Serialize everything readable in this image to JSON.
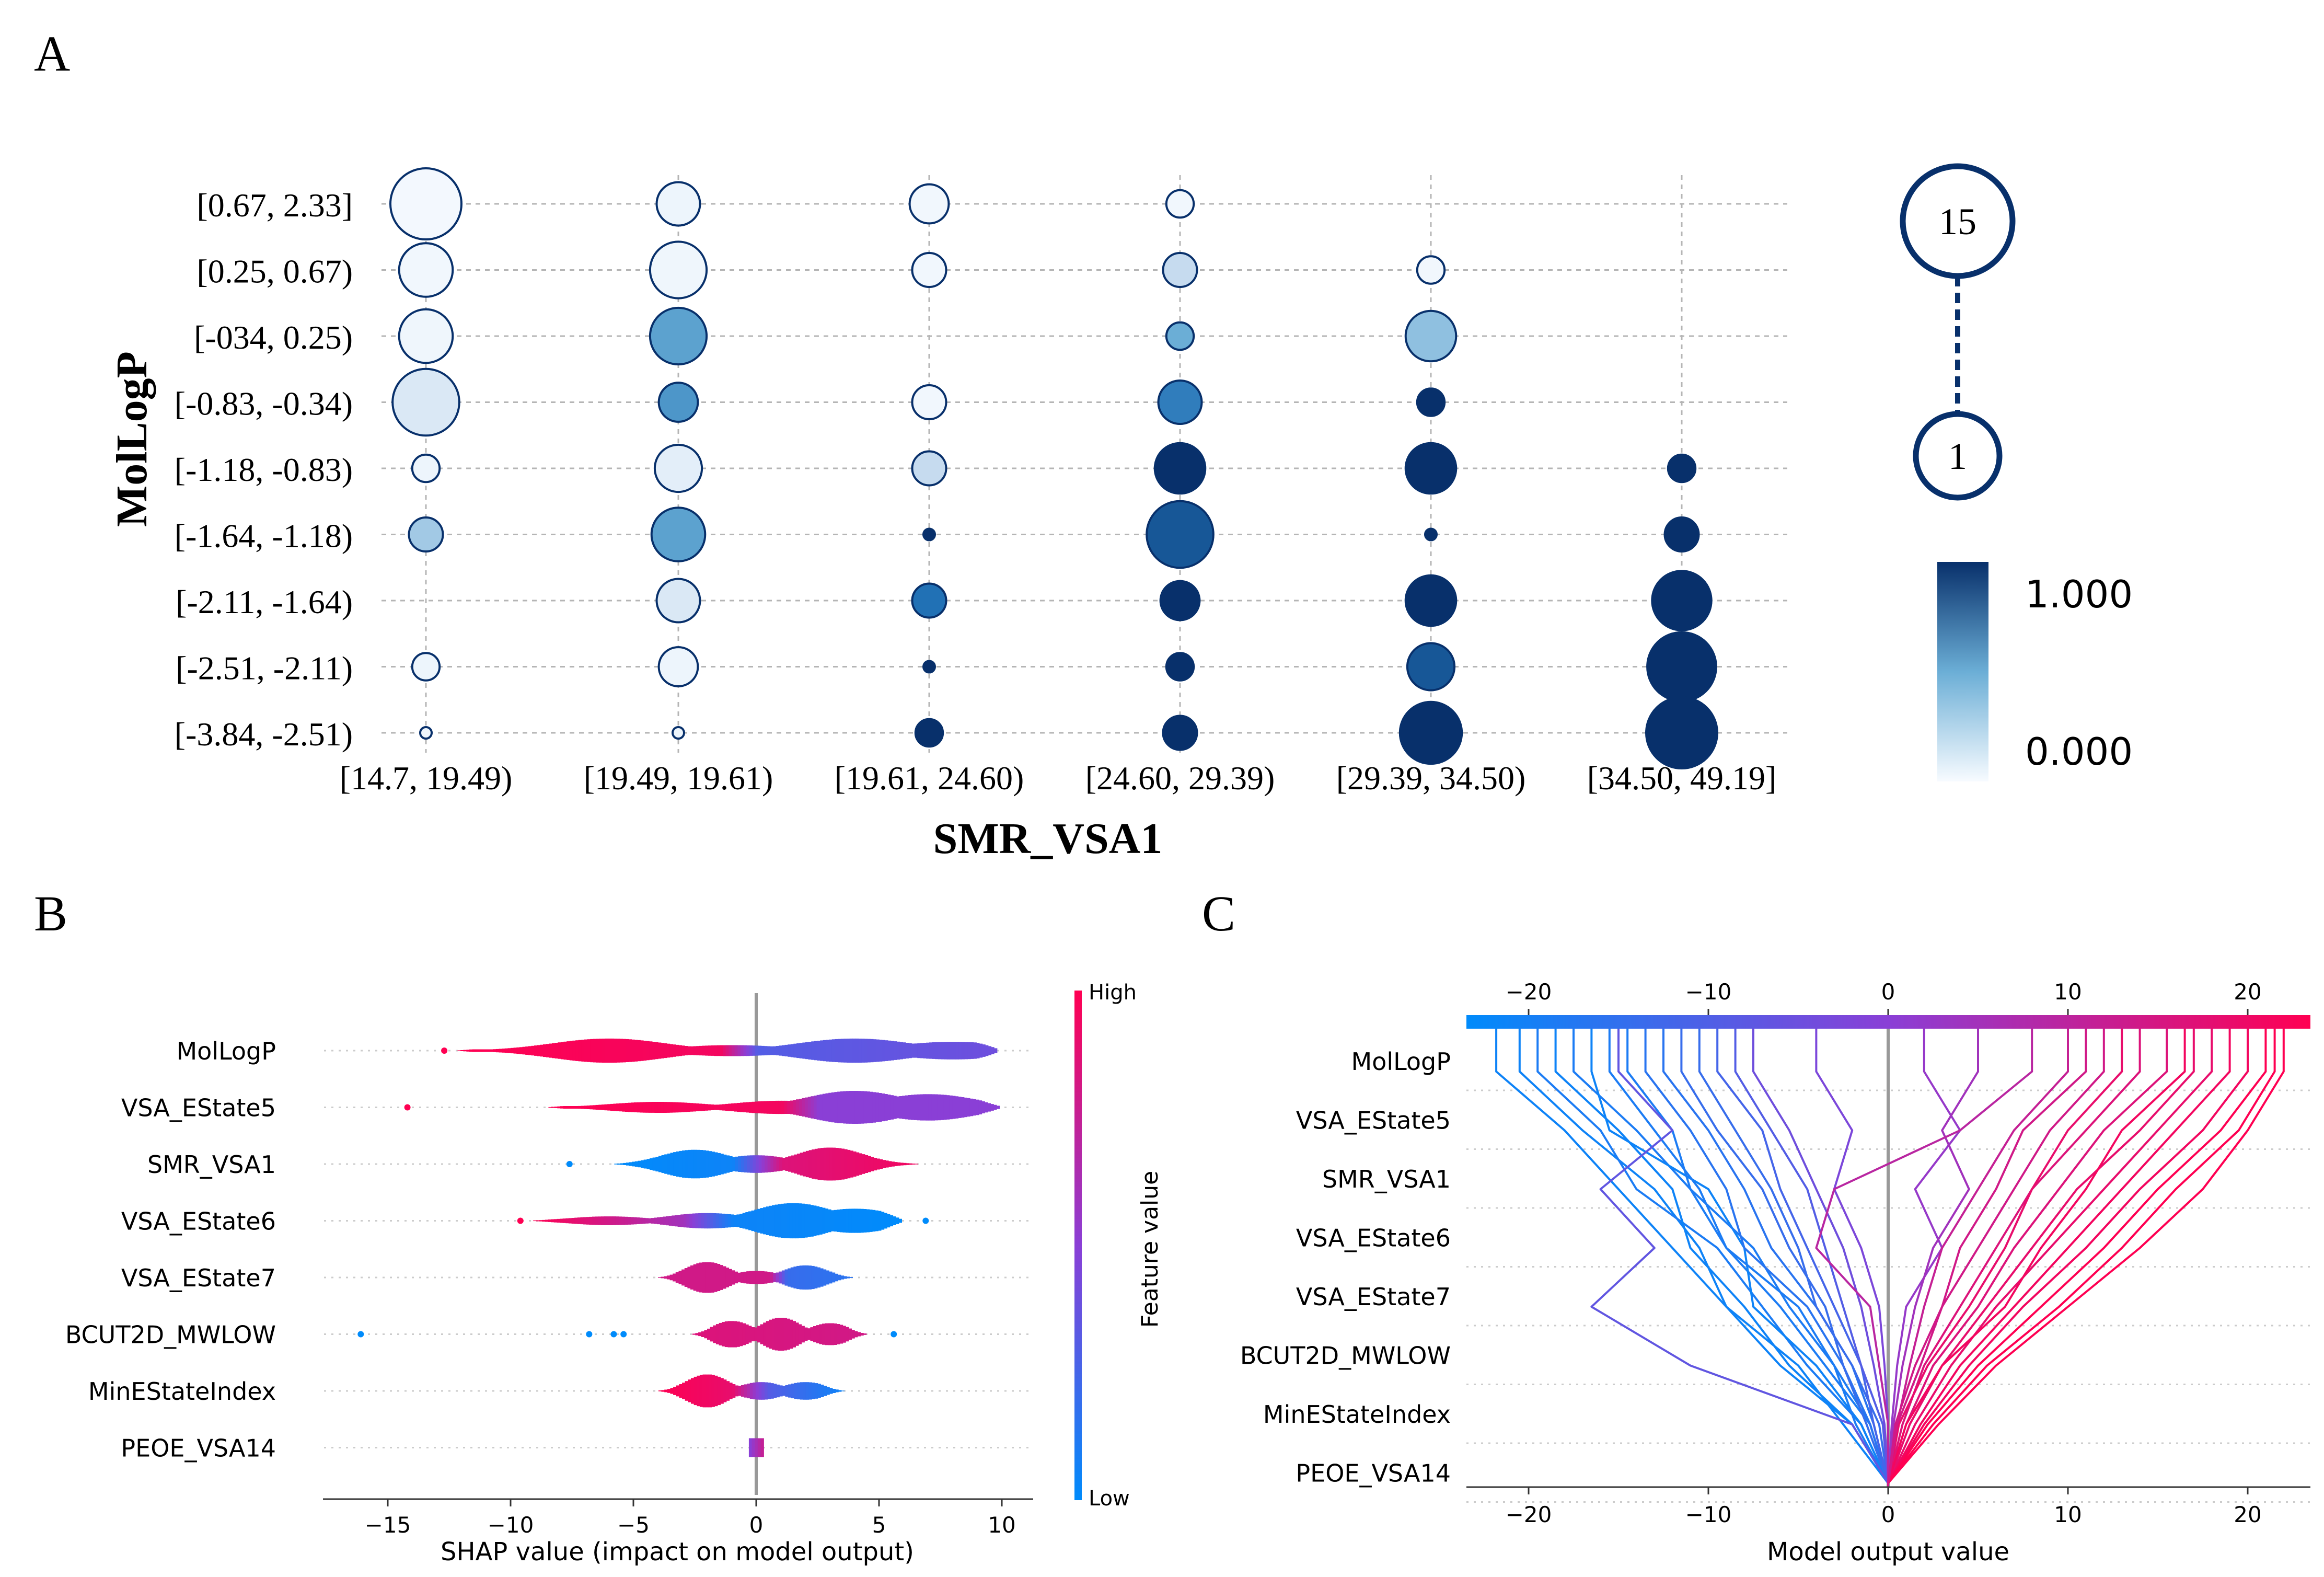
{
  "panel_labels": [
    "A",
    "B",
    "C"
  ],
  "chart_data": [
    {
      "type": "scatter",
      "panel": "A",
      "xlabel": "SMR_VSA1",
      "ylabel": "MolLogP",
      "x_categories": [
        "[14.7, 19.49)",
        "[19.49, 19.61)",
        "[19.61, 24.60)",
        "[24.60, 29.39)",
        "[29.39, 34.50)",
        "[34.50, 49.19]"
      ],
      "y_categories": [
        "[0.67, 2.33]",
        "[0.25, 0.67)",
        "[-034, 0.25)",
        "[-0.83, -0.34)",
        "[-1.18, -0.83)",
        "[-1.64, -1.18)",
        "[-2.11, -1.64)",
        "[-2.51, -2.11)",
        "[-3.84, -2.51)"
      ],
      "size_legend": {
        "max_label": "15",
        "min_label": "1",
        "max": 15,
        "min": 1
      },
      "color_legend": {
        "max_label": "1.000",
        "min_label": "0.000",
        "low_color": "#f7fbff",
        "high_color": "#08306b"
      },
      "points": [
        {
          "x": 0,
          "y": 0,
          "count": 15,
          "value": 0.02
        },
        {
          "x": 0,
          "y": 1,
          "count": 8,
          "value": 0.03
        },
        {
          "x": 0,
          "y": 2,
          "count": 8,
          "value": 0.04
        },
        {
          "x": 0,
          "y": 3,
          "count": 13,
          "value": 0.15
        },
        {
          "x": 0,
          "y": 4,
          "count": 2,
          "value": 0.05
        },
        {
          "x": 0,
          "y": 5,
          "count": 3,
          "value": 0.35
        },
        {
          "x": 0,
          "y": 7,
          "count": 2,
          "value": 0.05
        },
        {
          "x": 0,
          "y": 8,
          "count": 1,
          "value": 0.05
        },
        {
          "x": 1,
          "y": 0,
          "count": 5,
          "value": 0.05
        },
        {
          "x": 1,
          "y": 1,
          "count": 9,
          "value": 0.04
        },
        {
          "x": 1,
          "y": 2,
          "count": 9,
          "value": 0.55
        },
        {
          "x": 1,
          "y": 3,
          "count": 4,
          "value": 0.6
        },
        {
          "x": 1,
          "y": 4,
          "count": 6,
          "value": 0.1
        },
        {
          "x": 1,
          "y": 5,
          "count": 8,
          "value": 0.55
        },
        {
          "x": 1,
          "y": 6,
          "count": 5,
          "value": 0.15
        },
        {
          "x": 1,
          "y": 7,
          "count": 4,
          "value": 0.05
        },
        {
          "x": 1,
          "y": 8,
          "count": 1,
          "value": 0.05
        },
        {
          "x": 2,
          "y": 0,
          "count": 4,
          "value": 0.03
        },
        {
          "x": 2,
          "y": 1,
          "count": 3,
          "value": 0.03
        },
        {
          "x": 2,
          "y": 3,
          "count": 3,
          "value": 0.03
        },
        {
          "x": 2,
          "y": 4,
          "count": 3,
          "value": 0.25
        },
        {
          "x": 2,
          "y": 5,
          "count": 1,
          "value": 1.0
        },
        {
          "x": 2,
          "y": 6,
          "count": 3,
          "value": 0.75
        },
        {
          "x": 2,
          "y": 7,
          "count": 1,
          "value": 1.0
        },
        {
          "x": 2,
          "y": 8,
          "count": 2,
          "value": 1.0
        },
        {
          "x": 3,
          "y": 0,
          "count": 2,
          "value": 0.03
        },
        {
          "x": 3,
          "y": 1,
          "count": 3,
          "value": 0.25
        },
        {
          "x": 3,
          "y": 2,
          "count": 2,
          "value": 0.5
        },
        {
          "x": 3,
          "y": 3,
          "count": 5,
          "value": 0.7
        },
        {
          "x": 3,
          "y": 4,
          "count": 7,
          "value": 1.0
        },
        {
          "x": 3,
          "y": 5,
          "count": 13,
          "value": 0.85
        },
        {
          "x": 3,
          "y": 6,
          "count": 4,
          "value": 1.0
        },
        {
          "x": 3,
          "y": 7,
          "count": 2,
          "value": 1.0
        },
        {
          "x": 3,
          "y": 8,
          "count": 3,
          "value": 1.0
        },
        {
          "x": 4,
          "y": 1,
          "count": 2,
          "value": 0.03
        },
        {
          "x": 4,
          "y": 2,
          "count": 7,
          "value": 0.4
        },
        {
          "x": 4,
          "y": 3,
          "count": 2,
          "value": 1.0
        },
        {
          "x": 4,
          "y": 4,
          "count": 7,
          "value": 1.0
        },
        {
          "x": 4,
          "y": 5,
          "count": 1,
          "value": 1.0
        },
        {
          "x": 4,
          "y": 6,
          "count": 7,
          "value": 1.0
        },
        {
          "x": 4,
          "y": 7,
          "count": 6,
          "value": 0.85
        },
        {
          "x": 4,
          "y": 8,
          "count": 11,
          "value": 1.0
        },
        {
          "x": 5,
          "y": 4,
          "count": 2,
          "value": 1.0
        },
        {
          "x": 5,
          "y": 5,
          "count": 3,
          "value": 1.0
        },
        {
          "x": 5,
          "y": 6,
          "count": 10,
          "value": 1.0
        },
        {
          "x": 5,
          "y": 7,
          "count": 14,
          "value": 1.0
        },
        {
          "x": 5,
          "y": 8,
          "count": 15,
          "value": 1.0
        }
      ]
    },
    {
      "type": "violin",
      "panel": "B",
      "xlabel": "SHAP value (impact on model output)",
      "colorbar_label": "Feature value",
      "colorbar_high": "High",
      "colorbar_low": "Low",
      "low_color": "#008bfb",
      "high_color": "#ff0052",
      "xlim": [
        -17.5,
        10.5
      ],
      "xticks": [
        -15,
        -10,
        -5,
        0,
        5,
        10
      ],
      "xtick_labels": [
        "−15",
        "−10",
        "−5",
        "0",
        "5",
        "10"
      ],
      "features": [
        "MolLogP",
        "VSA_EState5",
        "SMR_VSA1",
        "VSA_EState6",
        "VSA_EState7",
        "BCUT2D_MWLOW",
        "MinEStateIndex",
        "PEOE_VSA14"
      ],
      "violins": [
        {
          "min": -12.4,
          "max": 9.8,
          "peaks": [
            [
              -6,
              0.55
            ],
            [
              -1,
              0.25
            ],
            [
              4,
              0.55
            ],
            [
              8,
              0.4
            ]
          ],
          "color_stops": [
            [
              -12.4,
              1.0
            ],
            [
              -1.5,
              0.95
            ],
            [
              0,
              0.3
            ],
            [
              9.8,
              0.4
            ]
          ]
        },
        {
          "min": -8.7,
          "max": 9.9,
          "peaks": [
            [
              -4,
              0.25
            ],
            [
              1,
              0.3
            ],
            [
              4,
              0.75
            ],
            [
              7,
              0.6
            ]
          ],
          "color_stops": [
            [
              -8.7,
              1.0
            ],
            [
              1,
              0.95
            ],
            [
              2.5,
              0.5
            ],
            [
              9.9,
              0.5
            ]
          ]
        },
        {
          "min": -5.9,
          "max": 6.8,
          "peaks": [
            [
              -2.5,
              0.65
            ],
            [
              0,
              0.4
            ],
            [
              3,
              0.75
            ]
          ],
          "color_stops": [
            [
              -5.9,
              0.0
            ],
            [
              -1,
              0.05
            ],
            [
              1,
              0.85
            ],
            [
              6.8,
              0.95
            ]
          ]
        },
        {
          "min": -9.2,
          "max": 5.9,
          "peaks": [
            [
              -6,
              0.2
            ],
            [
              -2,
              0.35
            ],
            [
              1.5,
              0.8
            ],
            [
              4,
              0.55
            ]
          ],
          "color_stops": [
            [
              -9.2,
              1.0
            ],
            [
              -3,
              0.6
            ],
            [
              -1,
              0.05
            ],
            [
              5.9,
              0.0
            ]
          ]
        },
        {
          "min": -4.0,
          "max": 4.0,
          "peaks": [
            [
              -2,
              0.7
            ],
            [
              0,
              0.3
            ],
            [
              2,
              0.55
            ]
          ],
          "color_stops": [
            [
              -4.0,
              0.8
            ],
            [
              0.5,
              0.8
            ],
            [
              1.2,
              0.2
            ],
            [
              4.0,
              0.15
            ]
          ]
        },
        {
          "min": -2.6,
          "max": 4.5,
          "peaks": [
            [
              -1,
              0.6
            ],
            [
              1,
              0.75
            ],
            [
              3,
              0.5
            ]
          ],
          "color_stops": [
            [
              -2.6,
              0.85
            ],
            [
              4.5,
              0.8
            ]
          ]
        },
        {
          "min": -4.1,
          "max": 3.5,
          "peaks": [
            [
              -2,
              0.75
            ],
            [
              0.2,
              0.4
            ],
            [
              2,
              0.4
            ]
          ],
          "color_stops": [
            [
              -4.1,
              1.0
            ],
            [
              -1,
              0.9
            ],
            [
              0.5,
              0.3
            ],
            [
              3.5,
              0.05
            ]
          ]
        },
        {
          "min": -0.3,
          "max": 0.3,
          "peaks": [
            [
              0,
              0.6
            ]
          ],
          "color_stops": [
            [
              -0.3,
              0.5
            ],
            [
              0.3,
              0.8
            ]
          ]
        }
      ],
      "outliers": [
        {
          "feature": 0,
          "x": -12.7,
          "value": 1.0
        },
        {
          "feature": 1,
          "x": -14.2,
          "value": 1.0
        },
        {
          "feature": 2,
          "x": -7.6,
          "value": 0.0
        },
        {
          "feature": 3,
          "x": -9.6,
          "value": 1.0
        },
        {
          "feature": 3,
          "x": 6.9,
          "value": 0.0
        },
        {
          "feature": 5,
          "x": -16.1,
          "value": 0.0
        },
        {
          "feature": 5,
          "x": -6.8,
          "value": 0.0
        },
        {
          "feature": 5,
          "x": -5.8,
          "value": 0.0
        },
        {
          "feature": 5,
          "x": -5.4,
          "value": 0.0
        },
        {
          "feature": 5,
          "x": 5.6,
          "value": 0.0
        }
      ]
    },
    {
      "type": "line",
      "panel": "C",
      "xlabel": "Model output value",
      "xlim": [
        -23.5,
        23.5
      ],
      "xticks": [
        -20,
        -10,
        0,
        10,
        20
      ],
      "xtick_labels": [
        "−20",
        "−10",
        "0",
        "10",
        "20"
      ],
      "features": [
        "MolLogP",
        "VSA_EState5",
        "SMR_VSA1",
        "VSA_EState6",
        "VSA_EState7",
        "BCUT2D_MWLOW",
        "MinEStateIndex",
        "PEOE_VSA14"
      ],
      "base_value": 0,
      "low_color": "#008bfb",
      "high_color": "#ff0052",
      "lines": [
        {
          "color": 0.05,
          "values": [
            -21.8,
            -18,
            -15,
            -12,
            -9,
            -6,
            -2,
            0
          ]
        },
        {
          "color": 0.05,
          "values": [
            -20.5,
            -17,
            -13,
            -10.5,
            -9,
            -5,
            -2.5,
            0
          ]
        },
        {
          "color": 0.1,
          "values": [
            -19.5,
            -16,
            -14,
            -9.5,
            -7,
            -4.5,
            -1.5,
            0
          ]
        },
        {
          "color": 0.05,
          "values": [
            -18.5,
            -15,
            -12,
            -11,
            -8,
            -5.5,
            -2,
            0
          ]
        },
        {
          "color": 0.1,
          "values": [
            -17.5,
            -14,
            -11,
            -9,
            -6,
            -3.5,
            -1,
            0
          ]
        },
        {
          "color": 0.05,
          "values": [
            -16.5,
            -15.5,
            -10,
            -8,
            -7.5,
            -4,
            -1.5,
            0
          ]
        },
        {
          "color": 0.1,
          "values": [
            -15.5,
            -13,
            -10.5,
            -9,
            -5,
            -3,
            -1,
            0
          ]
        },
        {
          "color": 0.1,
          "values": [
            -14.5,
            -12,
            -11,
            -7.5,
            -5.5,
            -3,
            -1.8,
            0
          ]
        },
        {
          "color": 0.15,
          "values": [
            -13.5,
            -11,
            -9,
            -8,
            -4.5,
            -2.5,
            -1,
            0
          ]
        },
        {
          "color": 0.15,
          "values": [
            -12.5,
            -10,
            -8,
            -6.5,
            -4,
            -2,
            -0.8,
            0
          ]
        },
        {
          "color": 0.2,
          "values": [
            -11.5,
            -9.5,
            -7,
            -5.5,
            -3.5,
            -2.5,
            -1.2,
            0
          ]
        },
        {
          "color": 0.2,
          "values": [
            -10.5,
            -8.5,
            -6.5,
            -5,
            -4,
            -2,
            -0.5,
            0
          ]
        },
        {
          "color": 0.25,
          "values": [
            -9.5,
            -7,
            -6,
            -4.5,
            -3,
            -1.5,
            -0.8,
            0
          ]
        },
        {
          "color": 0.3,
          "values": [
            -8.5,
            -6.5,
            -4.5,
            -3.5,
            -2.5,
            -1.5,
            -0.3,
            0
          ]
        },
        {
          "color": 0.35,
          "values": [
            -15,
            -12,
            -16,
            -13,
            -16.5,
            -11,
            -2,
            0
          ]
        },
        {
          "color": 0.4,
          "values": [
            -7.5,
            -5.5,
            -4,
            -2.5,
            -1.5,
            -0.8,
            -0.2,
            0
          ]
        },
        {
          "color": 0.45,
          "values": [
            -4,
            -2,
            -3,
            -1.5,
            -0.5,
            -0.2,
            0,
            0
          ]
        },
        {
          "color": 0.55,
          "values": [
            2,
            4,
            1.5,
            3,
            1,
            0.5,
            0.2,
            0
          ]
        },
        {
          "color": 0.6,
          "values": [
            5,
            3,
            4.5,
            2.5,
            1.5,
            0.8,
            0.3,
            0
          ]
        },
        {
          "color": 0.7,
          "values": [
            8,
            4,
            -3,
            -4,
            -1,
            -0.5,
            0,
            0
          ]
        },
        {
          "color": 0.75,
          "values": [
            10,
            7,
            5,
            3,
            2,
            1.2,
            0.5,
            0
          ]
        },
        {
          "color": 0.8,
          "values": [
            12,
            9,
            7,
            5,
            3,
            1.5,
            0.4,
            0
          ]
        },
        {
          "color": 0.85,
          "values": [
            14,
            11,
            8,
            6,
            4,
            2,
            0.8,
            0
          ]
        },
        {
          "color": 0.85,
          "values": [
            15.5,
            12,
            9.5,
            7,
            5,
            2.5,
            1,
            0
          ]
        },
        {
          "color": 0.9,
          "values": [
            17,
            14,
            10.5,
            8,
            5.5,
            3,
            1.2,
            0
          ]
        },
        {
          "color": 0.9,
          "values": [
            18,
            15,
            12,
            9,
            6,
            3.5,
            1.5,
            0
          ]
        },
        {
          "color": 0.95,
          "values": [
            19,
            16,
            13,
            10,
            7,
            4,
            1.8,
            0
          ]
        },
        {
          "color": 0.95,
          "values": [
            20,
            17.5,
            14,
            11,
            7.5,
            4.5,
            2,
            0
          ]
        },
        {
          "color": 1.0,
          "values": [
            21,
            18.5,
            15,
            12,
            8.5,
            5,
            2.2,
            0
          ]
        },
        {
          "color": 1.0,
          "values": [
            21.5,
            19.5,
            16,
            13,
            9.5,
            5.5,
            2.5,
            0
          ]
        },
        {
          "color": 1.0,
          "values": [
            22,
            20,
            17.5,
            14,
            10,
            6,
            2.8,
            0
          ]
        },
        {
          "color": 0.95,
          "values": [
            16.5,
            13,
            11,
            8.5,
            6.5,
            3,
            1,
            0
          ]
        },
        {
          "color": 0.9,
          "values": [
            13,
            10,
            8,
            6.5,
            4.5,
            2.2,
            0.6,
            0
          ]
        },
        {
          "color": 0.8,
          "values": [
            11,
            7.5,
            6,
            4,
            3,
            1.8,
            0.5,
            0
          ]
        }
      ]
    }
  ]
}
